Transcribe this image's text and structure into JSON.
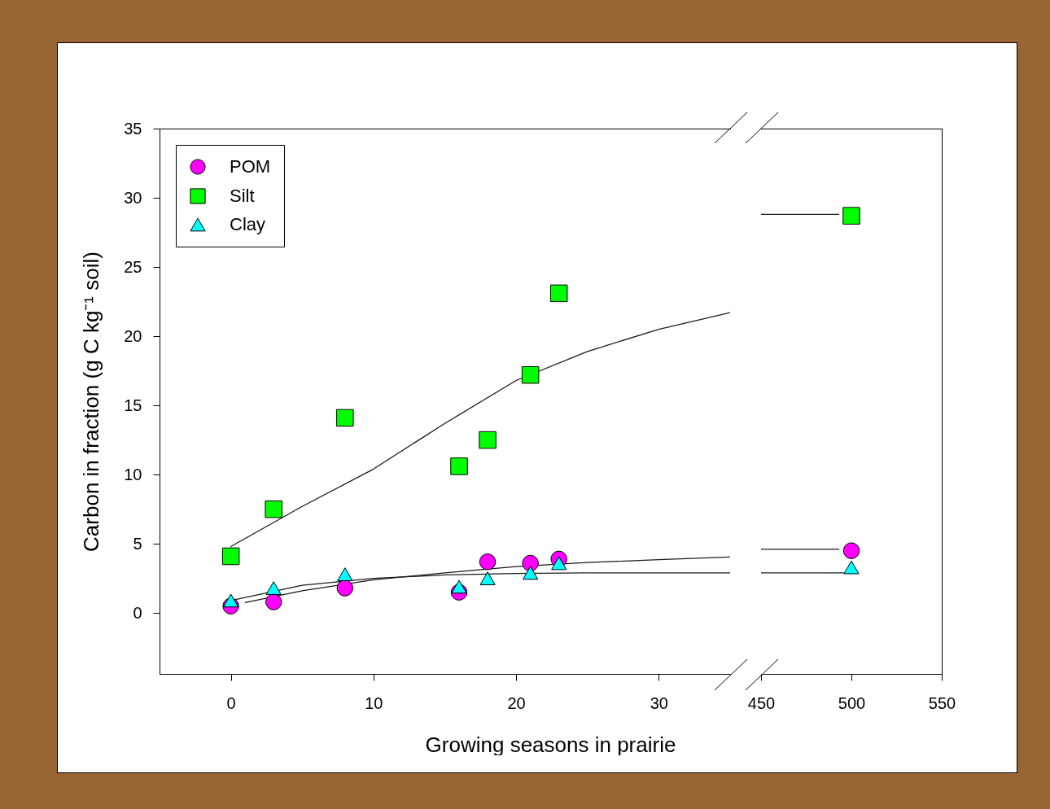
{
  "chart_data": [
    {
      "type": "scatter",
      "xlabel": "Growing seasons in prairie",
      "ylabel": "Carbon in fraction (g C kg⁻¹ soil)",
      "xlim": [
        -5,
        35
      ],
      "xticks": [
        0,
        10,
        20,
        30
      ],
      "ylim": [
        -4.4,
        35
      ],
      "yticks": [
        0,
        5,
        10,
        15,
        20,
        25,
        30,
        35
      ],
      "grid": false,
      "legend": "top left",
      "series": [
        {
          "type": "line",
          "color": "#1a1a1a",
          "x": [
            0,
            5,
            10,
            15,
            20,
            25,
            30,
            35
          ],
          "values": [
            4.8,
            7.7,
            10.4,
            13.7,
            16.8,
            18.9,
            20.5,
            21.7
          ]
        },
        {
          "type": "line",
          "color": "#1a1a1a",
          "x": [
            1,
            5,
            10,
            15,
            20,
            25,
            30,
            35
          ],
          "values": [
            0.75,
            1.6,
            2.4,
            2.9,
            3.35,
            3.65,
            3.85,
            4.05
          ]
        },
        {
          "type": "line",
          "color": "#1a1a1a",
          "x": [
            0,
            5,
            10,
            15,
            20,
            25,
            30,
            35
          ],
          "values": [
            0.9,
            2.0,
            2.5,
            2.75,
            2.85,
            2.9,
            2.9,
            2.9
          ]
        },
        {
          "name": "POM",
          "marker": "circle",
          "color": "#ff00ff",
          "x": [
            0,
            3,
            8,
            16,
            18,
            21,
            23
          ],
          "values": [
            0.5,
            0.8,
            1.8,
            1.5,
            3.7,
            3.6,
            3.9
          ]
        },
        {
          "name": "Silt",
          "marker": "square",
          "color": "#00ff00",
          "x": [
            0,
            3,
            8,
            16,
            18,
            21,
            23
          ],
          "values": [
            4.1,
            7.5,
            14.1,
            10.6,
            12.5,
            17.2,
            23.1
          ]
        },
        {
          "name": "Clay",
          "marker": "triangle",
          "color": "#00ffff",
          "x": [
            0,
            3,
            8,
            16,
            18,
            21,
            23
          ],
          "values": [
            0.9,
            1.8,
            2.8,
            1.9,
            2.5,
            2.9,
            3.6
          ]
        }
      ]
    },
    {
      "type": "scatter",
      "xlim": [
        450,
        550
      ],
      "xticks": [
        450,
        500,
        550
      ],
      "ylim": [
        -4.4,
        35
      ],
      "yticks": [
        0,
        5,
        10,
        15,
        20,
        25,
        30,
        35
      ],
      "tick_labels": "x",
      "grid": false,
      "series": [
        {
          "type": "line",
          "color": "#1a1a1a",
          "x": [
            450,
            493
          ],
          "values": [
            28.8,
            28.8
          ]
        },
        {
          "type": "line",
          "color": "#1a1a1a",
          "x": [
            450,
            493
          ],
          "values": [
            4.6,
            4.6
          ]
        },
        {
          "type": "line",
          "color": "#1a1a1a",
          "x": [
            450,
            500
          ],
          "values": [
            2.9,
            2.9
          ]
        },
        {
          "marker": "circle",
          "color": "#ff00ff",
          "x": [
            500
          ],
          "values": [
            4.5
          ]
        },
        {
          "marker": "square",
          "color": "#00ff00",
          "x": [
            500
          ],
          "values": [
            28.7
          ]
        },
        {
          "marker": "triangle",
          "color": "#00ffff",
          "x": [
            500
          ],
          "values": [
            3.3
          ]
        }
      ]
    }
  ]
}
